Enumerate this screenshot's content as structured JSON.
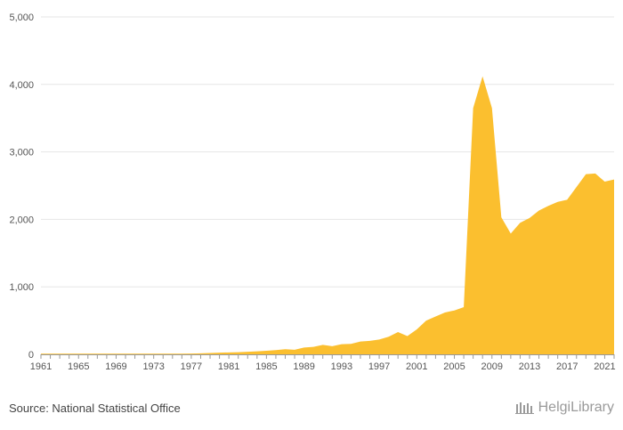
{
  "source_text": "Source: National Statistical Office",
  "logo_text": "HelgiLibrary",
  "colors": {
    "area": "#FBBF2F",
    "grid": "#e6e6e6",
    "axis": "#999999"
  },
  "chart_data": {
    "type": "area",
    "title": "",
    "xlabel": "",
    "ylabel": "",
    "ylim": [
      0,
      5000
    ],
    "xlim": [
      1961,
      2022
    ],
    "grid": true,
    "legend": "none",
    "y_ticks": [
      0,
      1000,
      2000,
      3000,
      4000,
      5000
    ],
    "y_tick_labels": [
      "0",
      "1,000",
      "2,000",
      "3,000",
      "4,000",
      "5,000"
    ],
    "x_tick_labels": [
      "1961",
      "1965",
      "1969",
      "1973",
      "1977",
      "1981",
      "1985",
      "1989",
      "1993",
      "1997",
      "2001",
      "2005",
      "2009",
      "2013",
      "2017",
      "2021"
    ],
    "x_tick_values": [
      1961,
      1965,
      1969,
      1973,
      1977,
      1981,
      1985,
      1989,
      1993,
      1997,
      2001,
      2005,
      2009,
      2013,
      2017,
      2021
    ],
    "x": [
      1961,
      1962,
      1963,
      1964,
      1965,
      1966,
      1967,
      1968,
      1969,
      1970,
      1971,
      1972,
      1973,
      1974,
      1975,
      1976,
      1977,
      1978,
      1979,
      1980,
      1981,
      1982,
      1983,
      1984,
      1985,
      1986,
      1987,
      1988,
      1989,
      1990,
      1991,
      1992,
      1993,
      1994,
      1995,
      1996,
      1997,
      1998,
      1999,
      2000,
      2001,
      2002,
      2003,
      2004,
      2005,
      2006,
      2007,
      2008,
      2009,
      2010,
      2011,
      2012,
      2013,
      2014,
      2015,
      2016,
      2017,
      2018,
      2019,
      2020,
      2021,
      2022
    ],
    "values": [
      10,
      10,
      10,
      10,
      10,
      10,
      10,
      10,
      10,
      10,
      10,
      10,
      10,
      10,
      10,
      10,
      12,
      15,
      20,
      25,
      28,
      32,
      38,
      45,
      52,
      62,
      75,
      68,
      100,
      110,
      140,
      120,
      150,
      155,
      190,
      200,
      220,
      260,
      330,
      270,
      370,
      500,
      560,
      620,
      650,
      700,
      3650,
      4120,
      3650,
      2030,
      1790,
      1950,
      2020,
      2130,
      2200,
      2260,
      2290,
      2480,
      2670,
      2680,
      2560,
      2590
    ]
  }
}
